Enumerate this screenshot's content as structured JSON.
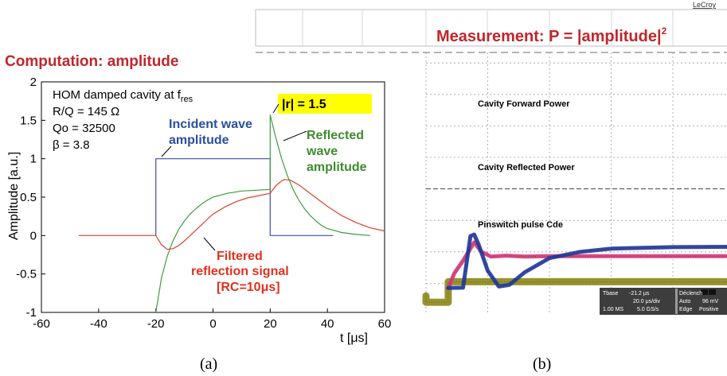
{
  "chart_data": [
    {
      "type": "line",
      "title": "Computation: amplitude",
      "xlabel": "t [μs]",
      "ylabel": "Amplitude [a.u.]",
      "xlim": [
        -60,
        60
      ],
      "ylim": [
        -1,
        2
      ],
      "xticks": [
        "-60",
        "-40",
        "-20",
        "0",
        "20",
        "40",
        "60"
      ],
      "yticks": [
        "-1",
        "-0.5",
        "0",
        "0.5",
        "1",
        "1.5",
        "2"
      ],
      "grid": false,
      "params": {
        "title": "HOM damped cavity at f",
        "title_sub": "res",
        "rq": "R/Q = 145 Ω",
        "qo": "Qo = 32500",
        "beta": "β = 3.8"
      },
      "annotations": {
        "incident_1": "Incident wave",
        "incident_2": "amplitude",
        "r_label": "|r| = 1.5",
        "reflected_1": "Reflected",
        "reflected_2": "wave",
        "reflected_3": "amplitude",
        "filtered_1": "Filtered",
        "filtered_2": "reflection signal",
        "filtered_3": "[RC=10μs]"
      },
      "series": [
        {
          "name": "Incident wave amplitude",
          "color": "#3a4fa8",
          "points": [
            [
              -20,
              0
            ],
            [
              -20,
              1
            ],
            [
              20,
              1
            ],
            [
              20,
              0
            ],
            [
              42,
              0
            ]
          ]
        },
        {
          "name": "Reflected wave amplitude",
          "color": "#3f9a3f",
          "points": [
            [
              -20,
              -1
            ],
            [
              -18,
              -0.55
            ],
            [
              -16,
              -0.27
            ],
            [
              -14,
              -0.07
            ],
            [
              -12,
              0.08
            ],
            [
              -10,
              0.19
            ],
            [
              -8,
              0.28
            ],
            [
              -6,
              0.35
            ],
            [
              -4,
              0.41
            ],
            [
              -2,
              0.46
            ],
            [
              0,
              0.5
            ],
            [
              5,
              0.55
            ],
            [
              10,
              0.58
            ],
            [
              15,
              0.59
            ],
            [
              20,
              0.6
            ],
            [
              20,
              1.57
            ],
            [
              22,
              1.27
            ],
            [
              24,
              1.0
            ],
            [
              26,
              0.78
            ],
            [
              28,
              0.6
            ],
            [
              30,
              0.46
            ],
            [
              32,
              0.35
            ],
            [
              34,
              0.26
            ],
            [
              36,
              0.19
            ],
            [
              38,
              0.13
            ],
            [
              40,
              0.09
            ],
            [
              45,
              0.04
            ],
            [
              50,
              0.015
            ],
            [
              55,
              0.0
            ]
          ]
        },
        {
          "name": "Filtered reflection signal",
          "color": "#e0402a",
          "points": [
            [
              -47,
              0
            ],
            [
              -20,
              0
            ],
            [
              -18,
              -0.12
            ],
            [
              -16,
              -0.18
            ],
            [
              -14,
              -0.17
            ],
            [
              -12,
              -0.13
            ],
            [
              -10,
              -0.07
            ],
            [
              -8,
              0.0
            ],
            [
              -6,
              0.07
            ],
            [
              -4,
              0.14
            ],
            [
              -2,
              0.21
            ],
            [
              0,
              0.28
            ],
            [
              4,
              0.37
            ],
            [
              8,
              0.44
            ],
            [
              12,
              0.49
            ],
            [
              16,
              0.52
            ],
            [
              20,
              0.55
            ],
            [
              22,
              0.65
            ],
            [
              24,
              0.71
            ],
            [
              25,
              0.73
            ],
            [
              27,
              0.72
            ],
            [
              30,
              0.66
            ],
            [
              35,
              0.52
            ],
            [
              40,
              0.38
            ],
            [
              45,
              0.26
            ],
            [
              50,
              0.17
            ],
            [
              55,
              0.1
            ],
            [
              60,
              0.06
            ]
          ]
        }
      ],
      "caption": "(a)"
    },
    {
      "type": "line",
      "title": "Measurement: P = |amplitude|",
      "title_exp": "2",
      "brand": "LeCroy",
      "units": "oscilloscope divisions",
      "grid": true,
      "series": [
        {
          "name": "Cavity Forward Power",
          "color": "#d63a78",
          "points": [
            [
              0.36,
              0.85
            ],
            [
              0.46,
              1.32
            ],
            [
              0.6,
              1.72
            ],
            [
              0.78,
              2.3
            ],
            [
              0.9,
              2.0
            ],
            [
              1.05,
              1.85
            ],
            [
              1.3,
              1.88
            ],
            [
              1.6,
              1.85
            ],
            [
              2.0,
              1.86
            ],
            [
              4.0,
              1.86
            ],
            [
              6.0,
              1.86
            ],
            [
              7.0,
              1.86
            ],
            [
              7.07,
              1.86
            ],
            [
              7.08,
              0.72
            ],
            [
              7.3,
              0.68
            ],
            [
              8.0,
              0.64
            ],
            [
              9.2,
              0.62
            ]
          ]
        },
        {
          "name": "Cavity Reflected Power",
          "color": "#233a9c",
          "points": [
            [
              0.36,
              0.85
            ],
            [
              0.6,
              0.86
            ],
            [
              0.72,
              2.5
            ],
            [
              0.78,
              2.55
            ],
            [
              0.86,
              2.2
            ],
            [
              1.0,
              1.4
            ],
            [
              1.18,
              0.9
            ],
            [
              1.35,
              0.95
            ],
            [
              1.6,
              1.35
            ],
            [
              2.0,
              1.8
            ],
            [
              2.5,
              2.0
            ],
            [
              3.0,
              2.1
            ],
            [
              4.0,
              2.15
            ],
            [
              5.0,
              2.16
            ],
            [
              7.04,
              2.16
            ],
            [
              7.08,
              4.75
            ],
            [
              7.2,
              3.6
            ],
            [
              7.4,
              2.4
            ],
            [
              7.6,
              1.5
            ],
            [
              7.8,
              0.95
            ],
            [
              8.0,
              0.82
            ],
            [
              8.5,
              0.75
            ],
            [
              9.2,
              0.72
            ]
          ]
        },
        {
          "name": "Pinswitch pulse Cde",
          "color": "#8e8a1c",
          "points": [
            [
              0.0,
              0.6
            ],
            [
              0.0,
              0.4
            ],
            [
              0.36,
              0.4
            ],
            [
              0.36,
              1.05
            ],
            [
              7.08,
              1.05
            ],
            [
              7.08,
              0.4
            ],
            [
              9.2,
              0.4
            ]
          ]
        }
      ],
      "info_panel": {
        "r1c1": "Tbase",
        "r1c2": "-21.2 μs",
        "r1c3": "Déclench",
        "r2c2": "20.0 μs/div",
        "r2c3": "Auto",
        "r2c4": "96 mV",
        "r3c1": "1.00 MS",
        "r3c2": "5.0 GS/s",
        "r3c3": "Edge",
        "r3c4": "Positive"
      },
      "caption": "(b)"
    }
  ]
}
